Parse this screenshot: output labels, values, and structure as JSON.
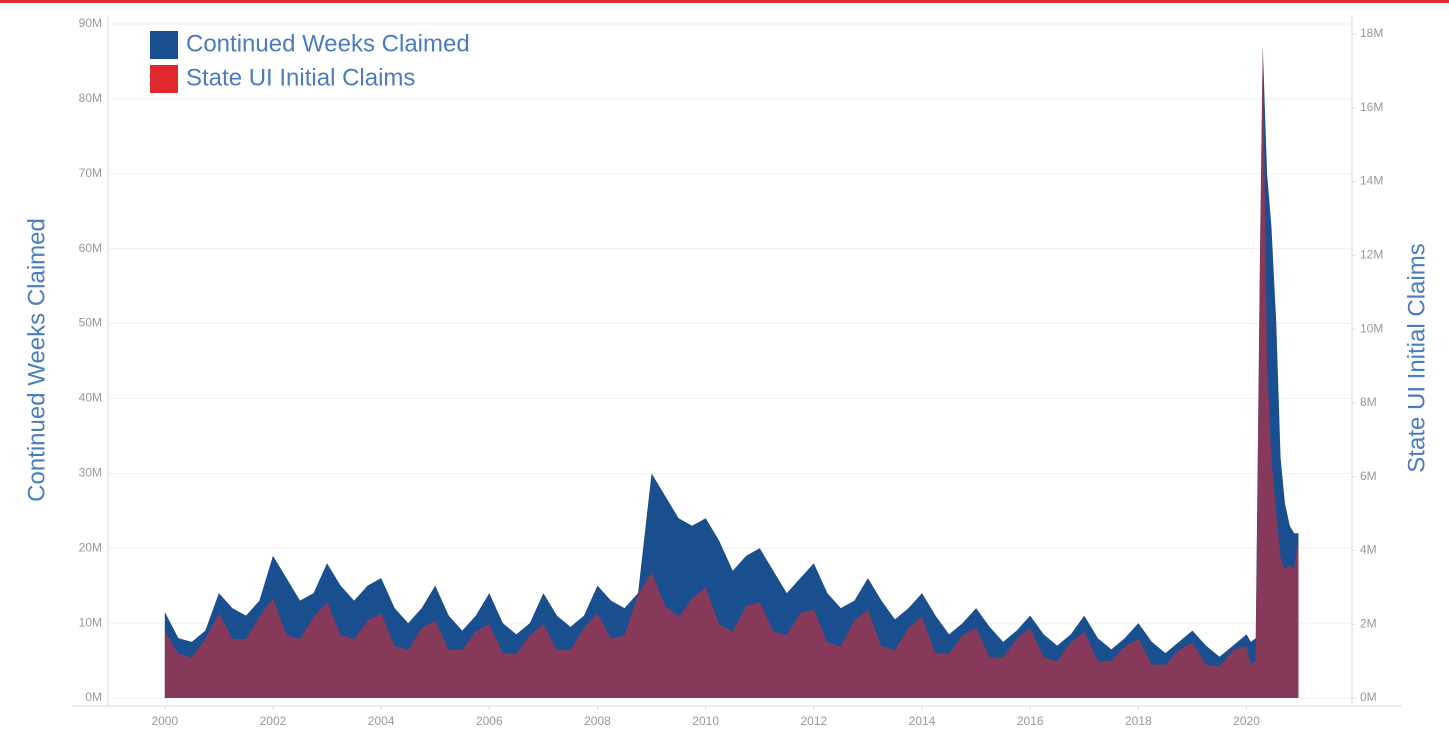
{
  "chart_data": {
    "type": "area",
    "x": [
      2000,
      2000.25,
      2000.5,
      2000.75,
      2001,
      2001.25,
      2001.5,
      2001.75,
      2002,
      2002.25,
      2002.5,
      2002.75,
      2003,
      2003.25,
      2003.5,
      2003.75,
      2004,
      2004.25,
      2004.5,
      2004.75,
      2005,
      2005.25,
      2005.5,
      2005.75,
      2006,
      2006.25,
      2006.5,
      2006.75,
      2007,
      2007.25,
      2007.5,
      2007.75,
      2008,
      2008.25,
      2008.5,
      2008.75,
      2009,
      2009.25,
      2009.5,
      2009.75,
      2010,
      2010.25,
      2010.5,
      2010.75,
      2011,
      2011.25,
      2011.5,
      2011.75,
      2012,
      2012.25,
      2012.5,
      2012.75,
      2013,
      2013.25,
      2013.5,
      2013.75,
      2014,
      2014.25,
      2014.5,
      2014.75,
      2015,
      2015.25,
      2015.5,
      2015.75,
      2016,
      2016.25,
      2016.5,
      2016.75,
      2017,
      2017.25,
      2017.5,
      2017.75,
      2018,
      2018.25,
      2018.5,
      2018.75,
      2019,
      2019.25,
      2019.5,
      2019.75,
      2020,
      2020.08,
      2020.17,
      2020.25,
      2020.3,
      2020.38,
      2020.46,
      2020.55,
      2020.63,
      2020.71,
      2020.8,
      2020.88,
      2020.96
    ],
    "series": [
      {
        "name": "Continued Weeks Claimed",
        "color": "#1a4f8f",
        "axis": "y",
        "values": [
          11.5,
          8,
          7.5,
          9,
          14,
          12,
          11,
          13,
          19,
          16,
          13,
          14,
          18,
          15,
          13,
          15,
          16,
          12,
          10,
          12,
          15,
          11,
          9,
          11,
          14,
          10,
          8.5,
          10,
          14,
          11,
          9.5,
          11,
          15,
          13,
          12,
          14,
          30,
          27,
          24,
          23,
          24,
          21,
          17,
          19,
          20,
          17,
          14,
          16,
          18,
          14,
          12,
          13,
          16,
          13,
          10.5,
          12,
          14,
          11,
          8.5,
          10,
          12,
          9.5,
          7.5,
          9,
          11,
          8.5,
          7,
          8.5,
          11,
          8,
          6.5,
          8,
          10,
          7.5,
          6,
          7.5,
          9,
          7,
          5.5,
          7,
          8.5,
          7.5,
          8,
          60,
          87,
          70,
          63,
          50,
          32,
          26,
          23,
          22,
          22
        ]
      },
      {
        "name": "State UI Initial Claims",
        "color": "#e0282e",
        "axis": "y2",
        "values": [
          1.8,
          1.2,
          1.1,
          1.6,
          2.3,
          1.6,
          1.6,
          2.2,
          2.7,
          1.7,
          1.6,
          2.2,
          2.6,
          1.7,
          1.6,
          2.1,
          2.3,
          1.4,
          1.3,
          1.9,
          2.1,
          1.3,
          1.3,
          1.8,
          2.0,
          1.2,
          1.2,
          1.7,
          2.0,
          1.3,
          1.3,
          1.9,
          2.3,
          1.6,
          1.7,
          2.8,
          3.4,
          2.5,
          2.2,
          2.7,
          3.0,
          2.0,
          1.8,
          2.5,
          2.6,
          1.8,
          1.7,
          2.3,
          2.4,
          1.5,
          1.4,
          2.1,
          2.4,
          1.4,
          1.3,
          1.9,
          2.2,
          1.2,
          1.2,
          1.7,
          1.9,
          1.1,
          1.1,
          1.6,
          1.9,
          1.1,
          1.0,
          1.5,
          1.8,
          1.0,
          1.0,
          1.4,
          1.6,
          0.9,
          0.9,
          1.3,
          1.5,
          0.9,
          0.85,
          1.3,
          1.4,
          0.9,
          1.0,
          12,
          17.7,
          9,
          6.5,
          5,
          3.8,
          3.5,
          3.6,
          3.5,
          4.3
        ]
      }
    ],
    "y_label": "Continued Weeks Claimed",
    "y2_label": "State UI Initial Claims",
    "xlim": [
      1998.95,
      2021.95
    ],
    "xticks": [
      2000,
      2002,
      2004,
      2006,
      2008,
      2010,
      2012,
      2014,
      2016,
      2018,
      2020
    ],
    "ylim": [
      0,
      90
    ],
    "yticks": [
      {
        "value": 0,
        "label": "0M"
      },
      {
        "value": 10,
        "label": "10M"
      },
      {
        "value": 20,
        "label": "20M"
      },
      {
        "value": 30,
        "label": "30M"
      },
      {
        "value": 40,
        "label": "40M"
      },
      {
        "value": 50,
        "label": "50M"
      },
      {
        "value": 60,
        "label": "60M"
      },
      {
        "value": 70,
        "label": "70M"
      },
      {
        "value": 80,
        "label": "80M"
      },
      {
        "value": 90,
        "label": "90M"
      }
    ],
    "y2lim": [
      0,
      18.27
    ],
    "y2ticks": [
      {
        "value": 0,
        "label": "0M"
      },
      {
        "value": 2,
        "label": "2M"
      },
      {
        "value": 4,
        "label": "4M"
      },
      {
        "value": 6,
        "label": "6M"
      },
      {
        "value": 8,
        "label": "8M"
      },
      {
        "value": 10,
        "label": "10M"
      },
      {
        "value": 12,
        "label": "12M"
      },
      {
        "value": 14,
        "label": "14M"
      },
      {
        "value": 16,
        "label": "16M"
      },
      {
        "value": 18,
        "label": "18M"
      }
    ],
    "grid": true,
    "legend": "top-left"
  }
}
